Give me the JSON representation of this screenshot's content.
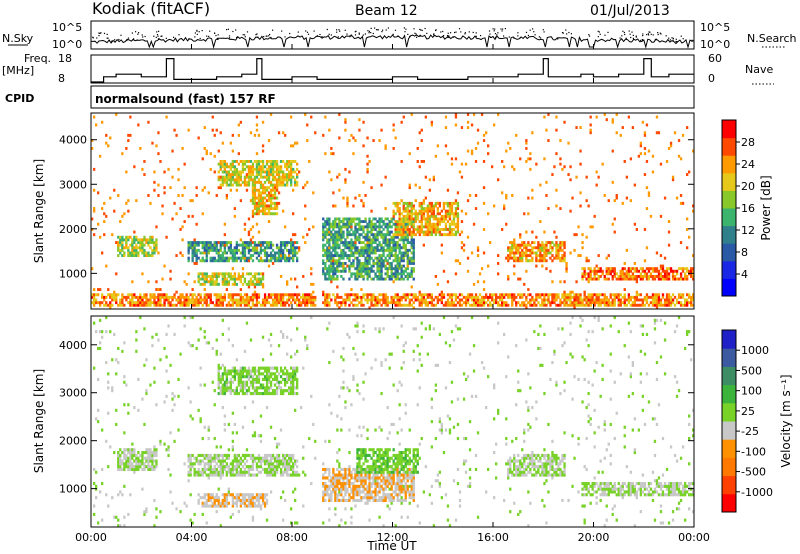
{
  "header": {
    "station": "Kodiak (fitACF)",
    "beam": "Beam 12",
    "date": "01/Jul/2013"
  },
  "top_panels": {
    "nsky_label": "N.Sky",
    "nsky_ticks": [
      "10^5",
      "10^0"
    ],
    "nsearch_label": "N.Search",
    "nsearch_ticks": [
      "10^5",
      "10^0"
    ],
    "freq_label": "Freq.",
    "freq_unit": "[MHz]",
    "freq_ticks": [
      "18",
      "8"
    ],
    "nave_label": "Nave",
    "nave_ticks": [
      "60",
      "0"
    ],
    "cpid_label": "CPID",
    "cpid_value": "normalsound (fast) 157 RF"
  },
  "colorbars": {
    "power": {
      "label": "Power [dB]",
      "ticks": [
        "28",
        "24",
        "20",
        "16",
        "12",
        "8",
        "4"
      ],
      "colors": [
        "#ff0000",
        "#ff4800",
        "#ff9a00",
        "#e6c81a",
        "#88c828",
        "#3cb46e",
        "#30808c",
        "#2a5aa6",
        "#1a28e6",
        "#0000ff"
      ]
    },
    "velocity": {
      "label": "Velocity [m s⁻¹]",
      "ticks": [
        "1000",
        "500",
        "100",
        "25",
        "-25",
        "-100",
        "-500",
        "-1000"
      ],
      "colors": [
        "#2020c8",
        "#3c5aa0",
        "#3c8c64",
        "#3cb43c",
        "#78d228",
        "#c8c8c8",
        "#ff9000",
        "#ff7800",
        "#ff4000",
        "#ff0000"
      ]
    }
  },
  "chart_data": [
    {
      "type": "heatmap",
      "title": "Power",
      "ylabel": "Slant Range [km]",
      "ylim": [
        200,
        4600
      ],
      "yticks": [
        "4000",
        "3000",
        "2000",
        "1000"
      ],
      "xlim": [
        "00:00",
        "24:00"
      ],
      "xticks": [
        "00:00",
        "04:00",
        "08:00",
        "12:00",
        "16:00",
        "20:00",
        "00:00"
      ],
      "colorbar_label": "Power [dB]",
      "value_range": [
        0,
        30
      ],
      "blobs": [
        {
          "t0": 1.0,
          "t1": 2.6,
          "r0": 1350,
          "r1": 1800,
          "v": 13
        },
        {
          "t0": 3.8,
          "t1": 8.2,
          "r0": 1200,
          "r1": 1700,
          "v": 18
        },
        {
          "t0": 4.2,
          "t1": 6.8,
          "r0": 700,
          "r1": 1000,
          "v": 12
        },
        {
          "t0": 5.0,
          "t1": 8.2,
          "r0": 2900,
          "r1": 3500,
          "v": 11
        },
        {
          "t0": 6.4,
          "t1": 7.4,
          "r0": 2300,
          "r1": 2900,
          "v": 10
        },
        {
          "t0": 9.2,
          "t1": 12.8,
          "r0": 800,
          "r1": 2200,
          "v": 17
        },
        {
          "t0": 12.0,
          "t1": 14.6,
          "r0": 1800,
          "r1": 2600,
          "v": 9
        },
        {
          "t0": 16.5,
          "t1": 18.8,
          "r0": 1200,
          "r1": 1700,
          "v": 8
        },
        {
          "t0": 19.5,
          "t1": 24.0,
          "r0": 800,
          "r1": 1100,
          "v": 6
        },
        {
          "t0": 0.0,
          "t1": 24.0,
          "r0": 250,
          "r1": 500,
          "v": 7
        }
      ]
    },
    {
      "type": "heatmap",
      "title": "Velocity",
      "ylabel": "Slant Range [km]",
      "ylim": [
        200,
        4600
      ],
      "yticks": [
        "4000",
        "3000",
        "2000",
        "1000"
      ],
      "xlim": [
        "00:00",
        "24:00"
      ],
      "xticks": [
        "00:00",
        "04:00",
        "08:00",
        "12:00",
        "16:00",
        "20:00",
        "00:00"
      ],
      "xlabel": "Time UT",
      "colorbar_label": "Velocity [m s⁻¹]",
      "value_range": [
        -1000,
        1000
      ],
      "blobs": [
        {
          "t0": 1.0,
          "t1": 2.6,
          "r0": 1350,
          "r1": 1800,
          "v": 0
        },
        {
          "t0": 3.8,
          "t1": 8.2,
          "r0": 1200,
          "r1": 1700,
          "v": 0
        },
        {
          "t0": 4.2,
          "t1": 7.0,
          "r0": 600,
          "r1": 900,
          "v": 150
        },
        {
          "t0": 5.0,
          "t1": 8.2,
          "r0": 2900,
          "r1": 3500,
          "v": -80
        },
        {
          "t0": 9.2,
          "t1": 12.8,
          "r0": 700,
          "r1": 1400,
          "v": 180
        },
        {
          "t0": 10.5,
          "t1": 13.0,
          "r0": 1300,
          "r1": 1800,
          "v": -150
        },
        {
          "t0": 16.5,
          "t1": 18.8,
          "r0": 1200,
          "r1": 1700,
          "v": 0
        },
        {
          "t0": 19.5,
          "t1": 24.0,
          "r0": 800,
          "r1": 1100,
          "v": 0
        }
      ]
    }
  ]
}
